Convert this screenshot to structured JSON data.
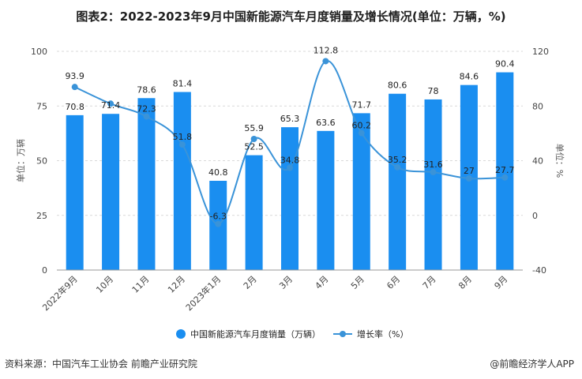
{
  "title": "图表2：2022-2023年9月中国新能源汽车月度销量及增长情况(单位：万辆，%)",
  "source": "资料来源：中国汽车工业协会 前瞻产业研究院",
  "credit": "@前瞻经济学人APP",
  "colors": {
    "bar": "#1a8ef0",
    "line": "#3a93d8",
    "grid": "#d9d9d9"
  },
  "chart_data": {
    "type": "bar",
    "categories": [
      "2022年9月",
      "10月",
      "11月",
      "12月",
      "2023年1月",
      "2月",
      "3月",
      "4月",
      "5月",
      "6月",
      "7月",
      "8月",
      "9月"
    ],
    "series": [
      {
        "name": "中国新能源汽车月度销量（万辆）",
        "type": "bar",
        "axis": "left",
        "values": [
          70.8,
          71.4,
          78.6,
          81.4,
          40.8,
          52.5,
          65.3,
          63.6,
          71.7,
          80.6,
          78,
          84.6,
          90.4
        ],
        "labels": [
          "70.8",
          "71.4",
          "78.6",
          "81.4",
          "40.8",
          "52.5",
          "65.3",
          "63.6",
          "71.7",
          "80.6",
          "78",
          "84.6",
          "90.4"
        ]
      },
      {
        "name": "增长率（%）",
        "type": "line",
        "axis": "right",
        "values": [
          93.9,
          81.7,
          72.3,
          51.8,
          -6.3,
          55.9,
          34.8,
          112.8,
          60.2,
          35.2,
          31.6,
          27,
          27.7
        ],
        "labels": [
          "93.9",
          "",
          "72.3",
          "51.8",
          "-6.3",
          "55.9",
          "34.8",
          "112.8",
          "60.2",
          "35.2",
          "31.6",
          "27",
          "27.7"
        ]
      }
    ],
    "ylabel_left": "单位：万辆",
    "ylabel_right": "单位：%",
    "ylim_left": [
      0,
      100
    ],
    "yticks_left": [
      0,
      25,
      50,
      75,
      100
    ],
    "ylim_right": [
      -40,
      120
    ],
    "yticks_right": [
      -40,
      0,
      40,
      80,
      120
    ],
    "grid": true,
    "legend_position": "bottom"
  }
}
